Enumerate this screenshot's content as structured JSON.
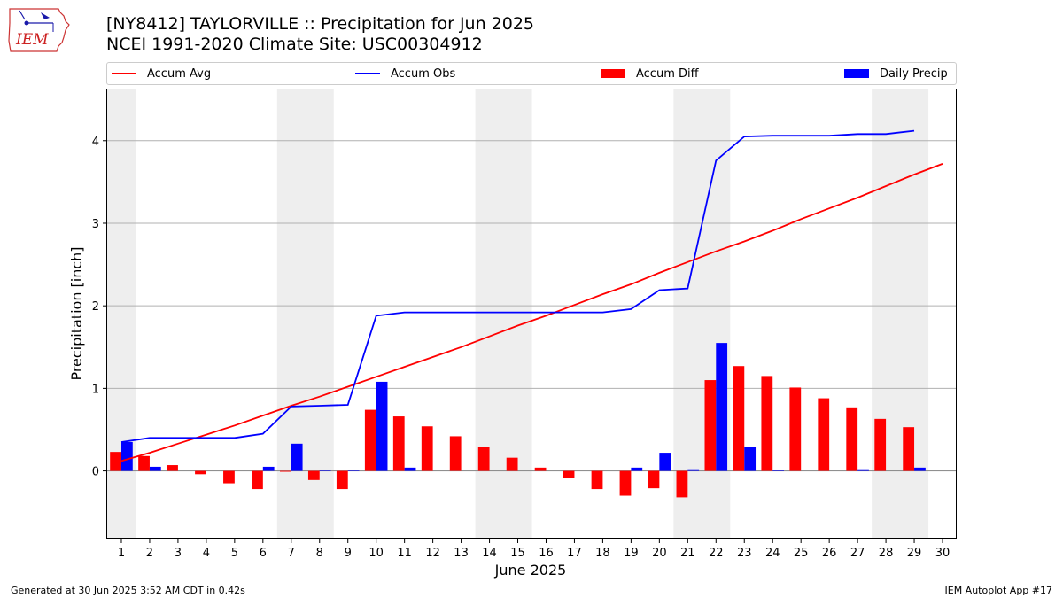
{
  "header": {
    "title_line1": "[NY8412] TAYLORVILLE :: Precipitation for Jun 2025",
    "title_line2": "NCEI 1991-2020 Climate Site: USC00304912"
  },
  "logo": {
    "text": "IEM",
    "icon": "iem-iowa-logo"
  },
  "legend": {
    "accum_avg": "Accum Avg",
    "accum_obs": "Accum Obs",
    "accum_diff": "Accum Diff",
    "daily_precip": "Daily Precip"
  },
  "footer": {
    "left": "Generated at 30 Jun 2025 3:52 AM CDT in 0.42s",
    "right": "IEM Autoplot App #17"
  },
  "colors": {
    "avg": "#ff0000",
    "obs": "#0000ff",
    "diff": "#ff0000",
    "daily": "#0000ff",
    "weekend": "#eeeeee",
    "grid": "#b0b0b0"
  },
  "chart_data": {
    "type": "bar",
    "xlabel": "June 2025",
    "ylabel": "Precipitation [inch]",
    "xlim": [
      0.5,
      30.5
    ],
    "ylim": [
      -0.82,
      4.62
    ],
    "yticks": [
      0,
      1,
      2,
      3,
      4
    ],
    "days": [
      1,
      2,
      3,
      4,
      5,
      6,
      7,
      8,
      9,
      10,
      11,
      12,
      13,
      14,
      15,
      16,
      17,
      18,
      19,
      20,
      21,
      22,
      23,
      24,
      25,
      26,
      27,
      28,
      29,
      30
    ],
    "weekend_bands": [
      [
        0.5,
        1.5
      ],
      [
        6.5,
        8.5
      ],
      [
        13.5,
        15.5
      ],
      [
        20.5,
        22.5
      ],
      [
        27.5,
        29.5
      ]
    ],
    "grid": "horizontal",
    "legend_position": "top",
    "series": [
      {
        "name": "Accum Avg",
        "kind": "line",
        "days": [
          1,
          2,
          3,
          4,
          5,
          6,
          7,
          8,
          9,
          10,
          11,
          12,
          13,
          14,
          15,
          16,
          17,
          18,
          19,
          20,
          21,
          22,
          23,
          24,
          25,
          26,
          27,
          28,
          29,
          30
        ],
        "values": [
          0.12,
          0.22,
          0.33,
          0.44,
          0.55,
          0.67,
          0.79,
          0.9,
          1.02,
          1.14,
          1.26,
          1.38,
          1.5,
          1.63,
          1.76,
          1.88,
          2.01,
          2.14,
          2.26,
          2.4,
          2.53,
          2.66,
          2.78,
          2.91,
          3.05,
          3.18,
          3.31,
          3.45,
          3.59,
          3.72
        ]
      },
      {
        "name": "Accum Obs",
        "kind": "line",
        "days": [
          1,
          2,
          3,
          4,
          5,
          6,
          7,
          8,
          9,
          10,
          11,
          12,
          13,
          14,
          15,
          16,
          17,
          18,
          19,
          20,
          21,
          22,
          23,
          24,
          25,
          26,
          27,
          28,
          29
        ],
        "values": [
          0.35,
          0.4,
          0.4,
          0.4,
          0.4,
          0.45,
          0.78,
          0.79,
          0.8,
          1.88,
          1.92,
          1.92,
          1.92,
          1.92,
          1.92,
          1.92,
          1.92,
          1.92,
          1.96,
          2.19,
          2.21,
          3.76,
          4.05,
          4.06,
          4.06,
          4.06,
          4.08,
          4.08,
          4.12
        ]
      },
      {
        "name": "Accum Diff",
        "kind": "bar",
        "days": [
          1,
          2,
          3,
          4,
          5,
          6,
          7,
          8,
          9,
          10,
          11,
          12,
          13,
          14,
          15,
          16,
          17,
          18,
          19,
          20,
          21,
          22,
          23,
          24,
          25,
          26,
          27,
          28,
          29
        ],
        "values": [
          0.23,
          0.18,
          0.07,
          -0.04,
          -0.15,
          -0.22,
          -0.01,
          -0.11,
          -0.22,
          0.74,
          0.66,
          0.54,
          0.42,
          0.29,
          0.16,
          0.04,
          -0.09,
          -0.22,
          -0.3,
          -0.21,
          -0.32,
          1.1,
          1.27,
          1.15,
          1.01,
          0.88,
          0.77,
          0.63,
          0.53
        ]
      },
      {
        "name": "Daily Precip",
        "kind": "bar",
        "days": [
          1,
          2,
          3,
          4,
          5,
          6,
          7,
          8,
          9,
          10,
          11,
          12,
          13,
          14,
          15,
          16,
          17,
          18,
          19,
          20,
          21,
          22,
          23,
          24,
          25,
          26,
          27,
          28,
          29
        ],
        "values": [
          0.35,
          0.05,
          0,
          0,
          0,
          0.05,
          0.33,
          0.01,
          0.01,
          1.08,
          0.04,
          0,
          0,
          0,
          0,
          0,
          0,
          0,
          0.04,
          0.22,
          0.02,
          1.55,
          0.29,
          0.01,
          0,
          0,
          0.02,
          0,
          0.04
        ]
      }
    ]
  }
}
